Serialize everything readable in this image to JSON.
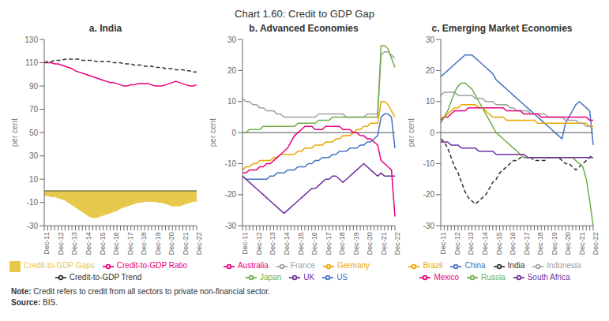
{
  "title": "Chart 1.60: Credit to GDP Gap",
  "annotations": [
    "Note: Credit refers to credit from all sectors to private non-financial sector.",
    "Source: BIS."
  ],
  "chart_data": [
    {
      "type": "line",
      "title": "a. India",
      "ylabel": "per cent",
      "categories": [
        "Dec-11",
        null,
        null,
        null,
        "Dec-12",
        null,
        null,
        null,
        "Dec-13",
        null,
        null,
        null,
        "Dec-14",
        null,
        null,
        null,
        "Dec-15",
        null,
        null,
        null,
        "Dec-16",
        null,
        null,
        null,
        "Dec-17",
        null,
        null,
        null,
        "Dec-18",
        null,
        null,
        null,
        "Dec-19",
        null,
        null,
        null,
        "Dec-20",
        null,
        null,
        null,
        "Dec-21",
        null,
        null,
        null,
        "Dec-22"
      ],
      "ylim": [
        -30,
        130
      ],
      "yticks": [
        -30,
        -10,
        10,
        30,
        50,
        70,
        90,
        110,
        130
      ],
      "grid": false,
      "legend": "bottom",
      "series": [
        {
          "name": "Credit-to-GDP Gaps",
          "type": "area",
          "color": "#E8C84A",
          "values": [
            -4,
            -4,
            -5,
            -5,
            -6,
            -7,
            -8,
            -10,
            -12,
            -14,
            -16,
            -18,
            -20,
            -22,
            -23,
            -23,
            -22,
            -21,
            -20,
            -19,
            -18,
            -17,
            -15,
            -14,
            -13,
            -12,
            -11,
            -10,
            -10,
            -9,
            -9,
            -9,
            -9,
            -10,
            -10,
            -11,
            -12,
            -13,
            -13,
            -13,
            -12,
            -11,
            -10,
            -9,
            -9
          ]
        },
        {
          "name": "Credit-to-GDP Ratio",
          "type": "line",
          "color": "#E8007A",
          "line_style": "solid",
          "values": [
            110,
            110,
            110,
            109,
            109,
            108,
            107,
            106,
            105,
            103,
            102,
            101,
            100,
            99,
            98,
            97,
            96,
            95,
            94,
            93,
            93,
            92,
            91,
            90,
            90,
            91,
            91,
            92,
            92,
            92,
            92,
            91,
            90,
            90,
            90,
            91,
            92,
            93,
            94,
            93,
            92,
            91,
            90,
            90,
            91
          ]
        },
        {
          "name": "Credit-to-GDP Trend",
          "type": "line",
          "color": "#333333",
          "line_style": "dashed",
          "values": [
            110,
            111,
            111,
            112,
            112,
            112,
            113,
            113,
            113,
            113,
            113,
            112,
            112,
            112,
            112,
            111,
            111,
            111,
            111,
            111,
            110,
            110,
            110,
            109,
            109,
            109,
            108,
            108,
            108,
            107,
            107,
            107,
            106,
            106,
            106,
            105,
            105,
            105,
            104,
            104,
            104,
            103,
            103,
            102,
            102
          ]
        }
      ]
    },
    {
      "type": "line",
      "title": "b. Advanced Economies",
      "ylabel": "per cent",
      "categories": [
        "Dec-11",
        null,
        null,
        null,
        "Dec-12",
        null,
        null,
        null,
        "Dec-13",
        null,
        null,
        null,
        "Dec-14",
        null,
        null,
        null,
        "Dec-15",
        null,
        null,
        null,
        "Dec-16",
        null,
        null,
        null,
        "Dec-17",
        null,
        null,
        null,
        "Dec-18",
        null,
        null,
        null,
        "Dec-19",
        null,
        null,
        null,
        "Dec-20",
        null,
        null,
        null,
        "Dec-21",
        null,
        null,
        null,
        "Dec-22"
      ],
      "ylim": [
        -30,
        30
      ],
      "yticks": [
        -30,
        -20,
        -10,
        0,
        10,
        20,
        30
      ],
      "grid": false,
      "legend": "bottom",
      "series": [
        {
          "name": "US",
          "color": "#4472C4",
          "line_style": "solid",
          "values": [
            -14,
            -15,
            -15,
            -15,
            -15,
            -15,
            -15,
            -15,
            -14,
            -14,
            -13,
            -13,
            -13,
            -12,
            -12,
            -12,
            -11,
            -11,
            -11,
            -10,
            -10,
            -9,
            -9,
            -8,
            -8,
            -8,
            -7,
            -7,
            -6,
            -6,
            -6,
            -5,
            -5,
            -5,
            -4,
            -4,
            -3,
            -3,
            -2,
            -1,
            5,
            6,
            6,
            5,
            -5
          ]
        },
        {
          "name": "UK",
          "color": "#7030A0",
          "line_style": "solid",
          "values": [
            -14,
            -15,
            -16,
            -17,
            -18,
            -19,
            -20,
            -21,
            -22,
            -23,
            -24,
            -25,
            -26,
            -25,
            -24,
            -23,
            -22,
            -21,
            -20,
            -19,
            -18,
            -18,
            -17,
            -16,
            -15,
            -15,
            -14,
            -14,
            -15,
            -16,
            -15,
            -14,
            -13,
            -12,
            -11,
            -10,
            -11,
            -12,
            -13,
            -14,
            -13,
            -14,
            -14,
            -14,
            -14
          ]
        },
        {
          "name": "France",
          "color": "#A0A0A0",
          "line_style": "solid",
          "values": [
            11,
            10,
            10,
            9,
            9,
            8,
            8,
            7,
            7,
            7,
            6,
            6,
            5,
            5,
            5,
            5,
            5,
            5,
            5,
            5,
            5,
            5,
            6,
            6,
            6,
            6,
            6,
            6,
            6,
            6,
            5,
            5,
            5,
            5,
            5,
            5,
            6,
            6,
            6,
            6,
            25,
            26,
            26,
            25,
            24
          ]
        },
        {
          "name": "Germany",
          "color": "#E8A800",
          "line_style": "solid",
          "values": [
            -12,
            -11,
            -11,
            -10,
            -10,
            -9,
            -9,
            -9,
            -9,
            -8,
            -8,
            -7,
            -7,
            -7,
            -7,
            -7,
            -6,
            -6,
            -5,
            -5,
            -5,
            -4,
            -4,
            -4,
            -3,
            -3,
            -3,
            -2,
            -2,
            -1,
            -1,
            -1,
            0,
            1,
            1,
            2,
            2,
            3,
            3,
            3,
            10,
            10,
            9,
            7,
            5
          ]
        },
        {
          "name": "Australia",
          "color": "#E8007A",
          "line_style": "solid",
          "values": [
            -13,
            -13,
            -12,
            -12,
            -12,
            -11,
            -11,
            -10,
            -10,
            -9,
            -8,
            -7,
            -6,
            -5,
            -3,
            -1,
            0,
            1,
            2,
            2,
            2,
            1,
            1,
            1,
            2,
            2,
            2,
            2,
            2,
            1,
            1,
            1,
            0,
            0,
            -1,
            -1,
            -2,
            -2,
            -3,
            -4,
            -9,
            -10,
            -11,
            -12,
            -27
          ]
        },
        {
          "name": "Japan",
          "color": "#70AD47",
          "line_style": "solid",
          "values": [
            0,
            0,
            1,
            1,
            1,
            1,
            2,
            2,
            2,
            2,
            2,
            2,
            2,
            2,
            2,
            2,
            3,
            3,
            3,
            3,
            3,
            3,
            4,
            4,
            4,
            4,
            5,
            5,
            5,
            5,
            5,
            5,
            5,
            5,
            5,
            5,
            5,
            5,
            5,
            5,
            28,
            28,
            27,
            24,
            21
          ]
        }
      ]
    },
    {
      "type": "line",
      "title": "c. Emerging Market Economies",
      "ylabel": "per cent",
      "categories": [
        "Dec-11",
        null,
        null,
        null,
        "Dec-12",
        null,
        null,
        null,
        "Dec-13",
        null,
        null,
        null,
        "Dec-14",
        null,
        null,
        null,
        "Dec-15",
        null,
        null,
        null,
        "Dec-16",
        null,
        null,
        null,
        "Dec-17",
        null,
        null,
        null,
        "Dec-18",
        null,
        null,
        null,
        "Dec-19",
        null,
        null,
        null,
        "Dec-20",
        null,
        null,
        null,
        "Dec-21",
        null,
        null,
        null,
        "Dec-22"
      ],
      "ylim": [
        -30,
        30
      ],
      "yticks": [
        -30,
        -20,
        -10,
        0,
        10,
        20,
        30
      ],
      "grid": false,
      "legend": "bottom",
      "series": [
        {
          "name": "China",
          "color": "#4472C4",
          "line_style": "solid",
          "values": [
            18,
            19,
            20,
            21,
            22,
            23,
            24,
            25,
            25,
            25,
            24,
            23,
            22,
            21,
            20,
            19,
            17,
            16,
            15,
            14,
            13,
            12,
            11,
            10,
            9,
            8,
            7,
            6,
            5,
            4,
            3,
            2,
            1,
            0,
            -1,
            -2,
            3,
            5,
            7,
            9,
            10,
            9,
            8,
            7,
            -4
          ]
        },
        {
          "name": "Brazil",
          "color": "#E8A800",
          "line_style": "solid",
          "values": [
            5,
            5,
            6,
            7,
            8,
            8,
            9,
            9,
            9,
            9,
            9,
            8,
            8,
            7,
            6,
            5,
            5,
            5,
            5,
            4,
            4,
            4,
            4,
            4,
            4,
            4,
            4,
            4,
            3,
            3,
            3,
            3,
            3,
            3,
            3,
            3,
            3,
            3,
            3,
            3,
            3,
            3,
            3,
            2,
            2
          ]
        },
        {
          "name": "Indonesia",
          "color": "#A0A0A0",
          "line_style": "solid",
          "values": [
            12,
            13,
            13,
            13,
            13,
            12,
            12,
            12,
            12,
            12,
            11,
            11,
            11,
            10,
            10,
            10,
            9,
            9,
            9,
            9,
            8,
            8,
            7,
            7,
            7,
            7,
            6,
            6,
            6,
            6,
            6,
            5,
            5,
            5,
            5,
            5,
            4,
            4,
            4,
            4,
            3,
            3,
            2,
            2,
            1
          ]
        },
        {
          "name": "India",
          "color": "#333333",
          "line_style": "dashed",
          "values": [
            -2,
            -3,
            -5,
            -8,
            -11,
            -13,
            -16,
            -19,
            -21,
            -22,
            -23,
            -22,
            -21,
            -20,
            -18,
            -16,
            -15,
            -13,
            -12,
            -11,
            -10,
            -9,
            -9,
            -8,
            -8,
            -8,
            -8,
            -9,
            -9,
            -9,
            -9,
            -8,
            -8,
            -8,
            -8,
            -9,
            -10,
            -10,
            -11,
            -12,
            -11,
            -10,
            -9,
            -8,
            -7
          ]
        },
        {
          "name": "Mexico",
          "color": "#E8007A",
          "line_style": "solid",
          "values": [
            4,
            5,
            5,
            6,
            7,
            7,
            7,
            7,
            8,
            8,
            8,
            8,
            8,
            8,
            8,
            8,
            8,
            8,
            8,
            7,
            7,
            7,
            7,
            7,
            6,
            6,
            6,
            6,
            6,
            5,
            5,
            5,
            5,
            5,
            5,
            5,
            5,
            5,
            5,
            5,
            5,
            5,
            5,
            4,
            4
          ]
        },
        {
          "name": "Russia",
          "color": "#70AD47",
          "line_style": "solid",
          "values": [
            3,
            5,
            7,
            10,
            13,
            15,
            16,
            16,
            15,
            14,
            12,
            10,
            8,
            6,
            4,
            2,
            0,
            -1,
            -2,
            -3,
            -4,
            -5,
            -6,
            -7,
            -8,
            -8,
            -8,
            -8,
            -8,
            -8,
            -8,
            -8,
            -8,
            -8,
            -8,
            -8,
            -8,
            -8,
            -8,
            -9,
            -10,
            -11,
            -15,
            -22,
            -30
          ]
        },
        {
          "name": "South Africa",
          "color": "#7030A0",
          "line_style": "solid",
          "values": [
            -3,
            -3,
            -3,
            -4,
            -4,
            -4,
            -5,
            -5,
            -5,
            -5,
            -5,
            -6,
            -6,
            -6,
            -6,
            -6,
            -7,
            -7,
            -7,
            -7,
            -7,
            -7,
            -7,
            -7,
            -7,
            -8,
            -8,
            -8,
            -8,
            -8,
            -8,
            -8,
            -8,
            -8,
            -8,
            -8,
            -8,
            -8,
            -8,
            -8,
            -8,
            -8,
            -8,
            -8,
            -8
          ]
        }
      ]
    }
  ]
}
